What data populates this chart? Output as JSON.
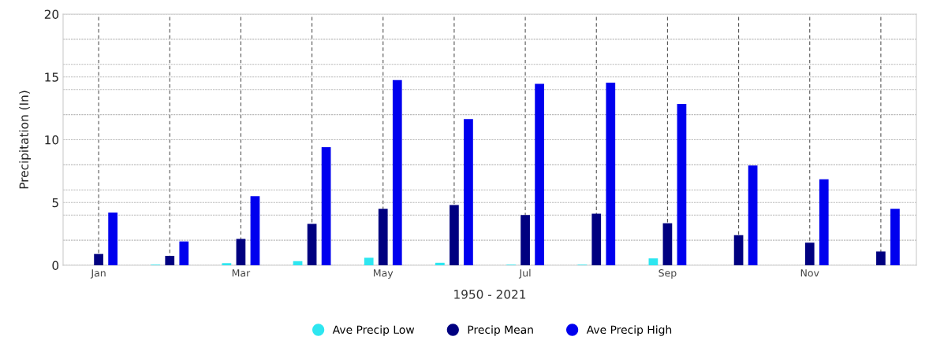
{
  "chart_data": {
    "type": "bar",
    "xlabel": "1950 - 2021",
    "ylabel": "Precipitation (In)",
    "categories": [
      "Jan",
      null,
      "Mar",
      null,
      "May",
      null,
      "Jul",
      null,
      "Sep",
      null,
      "Nov",
      null
    ],
    "series": [
      {
        "name": "Ave Precip Low",
        "color": "#2ee6f0",
        "values": [
          0,
          0.05,
          0.17,
          0.33,
          0.6,
          0.2,
          0.05,
          0.05,
          0.55,
          0,
          0,
          0
        ]
      },
      {
        "name": "Precip Mean",
        "color": "#000080",
        "values": [
          0.9,
          0.75,
          2.1,
          3.3,
          4.5,
          4.8,
          4.0,
          4.1,
          3.35,
          2.4,
          1.8,
          1.1
        ]
      },
      {
        "name": "Ave Precip High",
        "color": "#0000ee",
        "values": [
          4.2,
          1.9,
          5.5,
          9.4,
          14.75,
          11.65,
          14.45,
          14.55,
          12.85,
          7.95,
          6.85,
          4.5
        ]
      }
    ],
    "ylim": [
      0,
      20
    ],
    "yticks": [
      0,
      {
        "value": 2,
        "label": null
      },
      {
        "value": 4,
        "label": null
      },
      5,
      {
        "value": 6,
        "label": null
      },
      {
        "value": 8,
        "label": null
      },
      10,
      {
        "value": 12,
        "label": null
      },
      {
        "value": 14,
        "label": null
      },
      15,
      {
        "value": 16,
        "label": null
      },
      {
        "value": 18,
        "label": null
      },
      20
    ],
    "grid": true,
    "legend": "bottom",
    "marker": "circle"
  }
}
